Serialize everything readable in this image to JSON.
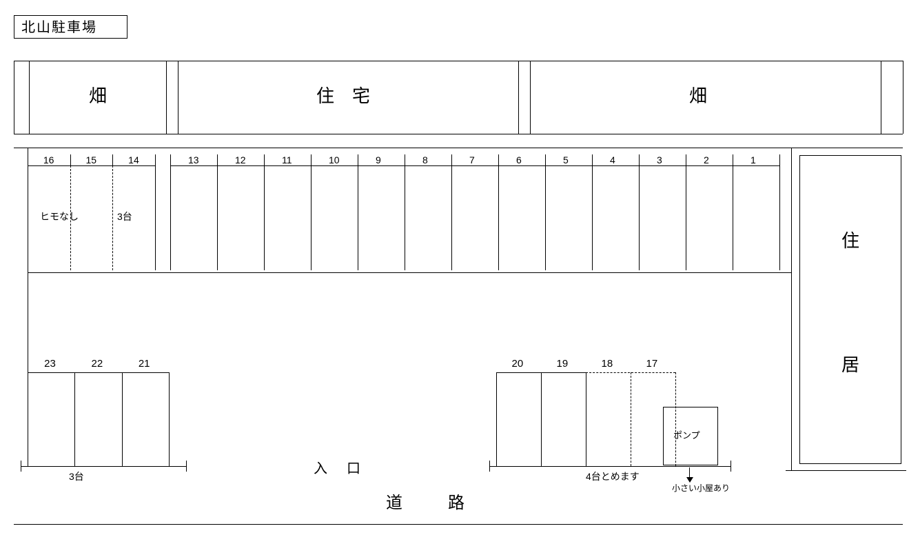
{
  "title": "北山駐車場",
  "north_blocks": {
    "left": {
      "label": "畑"
    },
    "center": {
      "label": "住　宅"
    },
    "right": {
      "label": "畑"
    }
  },
  "east_block": {
    "label": "住居"
  },
  "row_top_main": {
    "slots": [
      "13",
      "12",
      "11",
      "10",
      "9",
      "8",
      "7",
      "6",
      "5",
      "4",
      "3",
      "2",
      "1"
    ]
  },
  "row_top_extra": {
    "slots": [
      "16",
      "15",
      "14"
    ],
    "note_left": "ヒモなし",
    "note_right": "3台"
  },
  "row_bottom_left": {
    "slots": [
      "23",
      "22",
      "21"
    ],
    "note_below": "3台"
  },
  "row_bottom_right": {
    "slots": [
      "20",
      "19",
      "18",
      "17"
    ],
    "note_below": "4台とめます",
    "pump_label": "ポンプ",
    "pump_note": "小さい小屋あり"
  },
  "entrance_label": "入　口",
  "road_label": "道　　路",
  "colors": {
    "stroke": "#000000",
    "bg": "#ffffff"
  },
  "fontsize": {
    "title": 20,
    "block": 26,
    "slot": 14,
    "note": 14,
    "entrance": 20,
    "road": 24
  }
}
